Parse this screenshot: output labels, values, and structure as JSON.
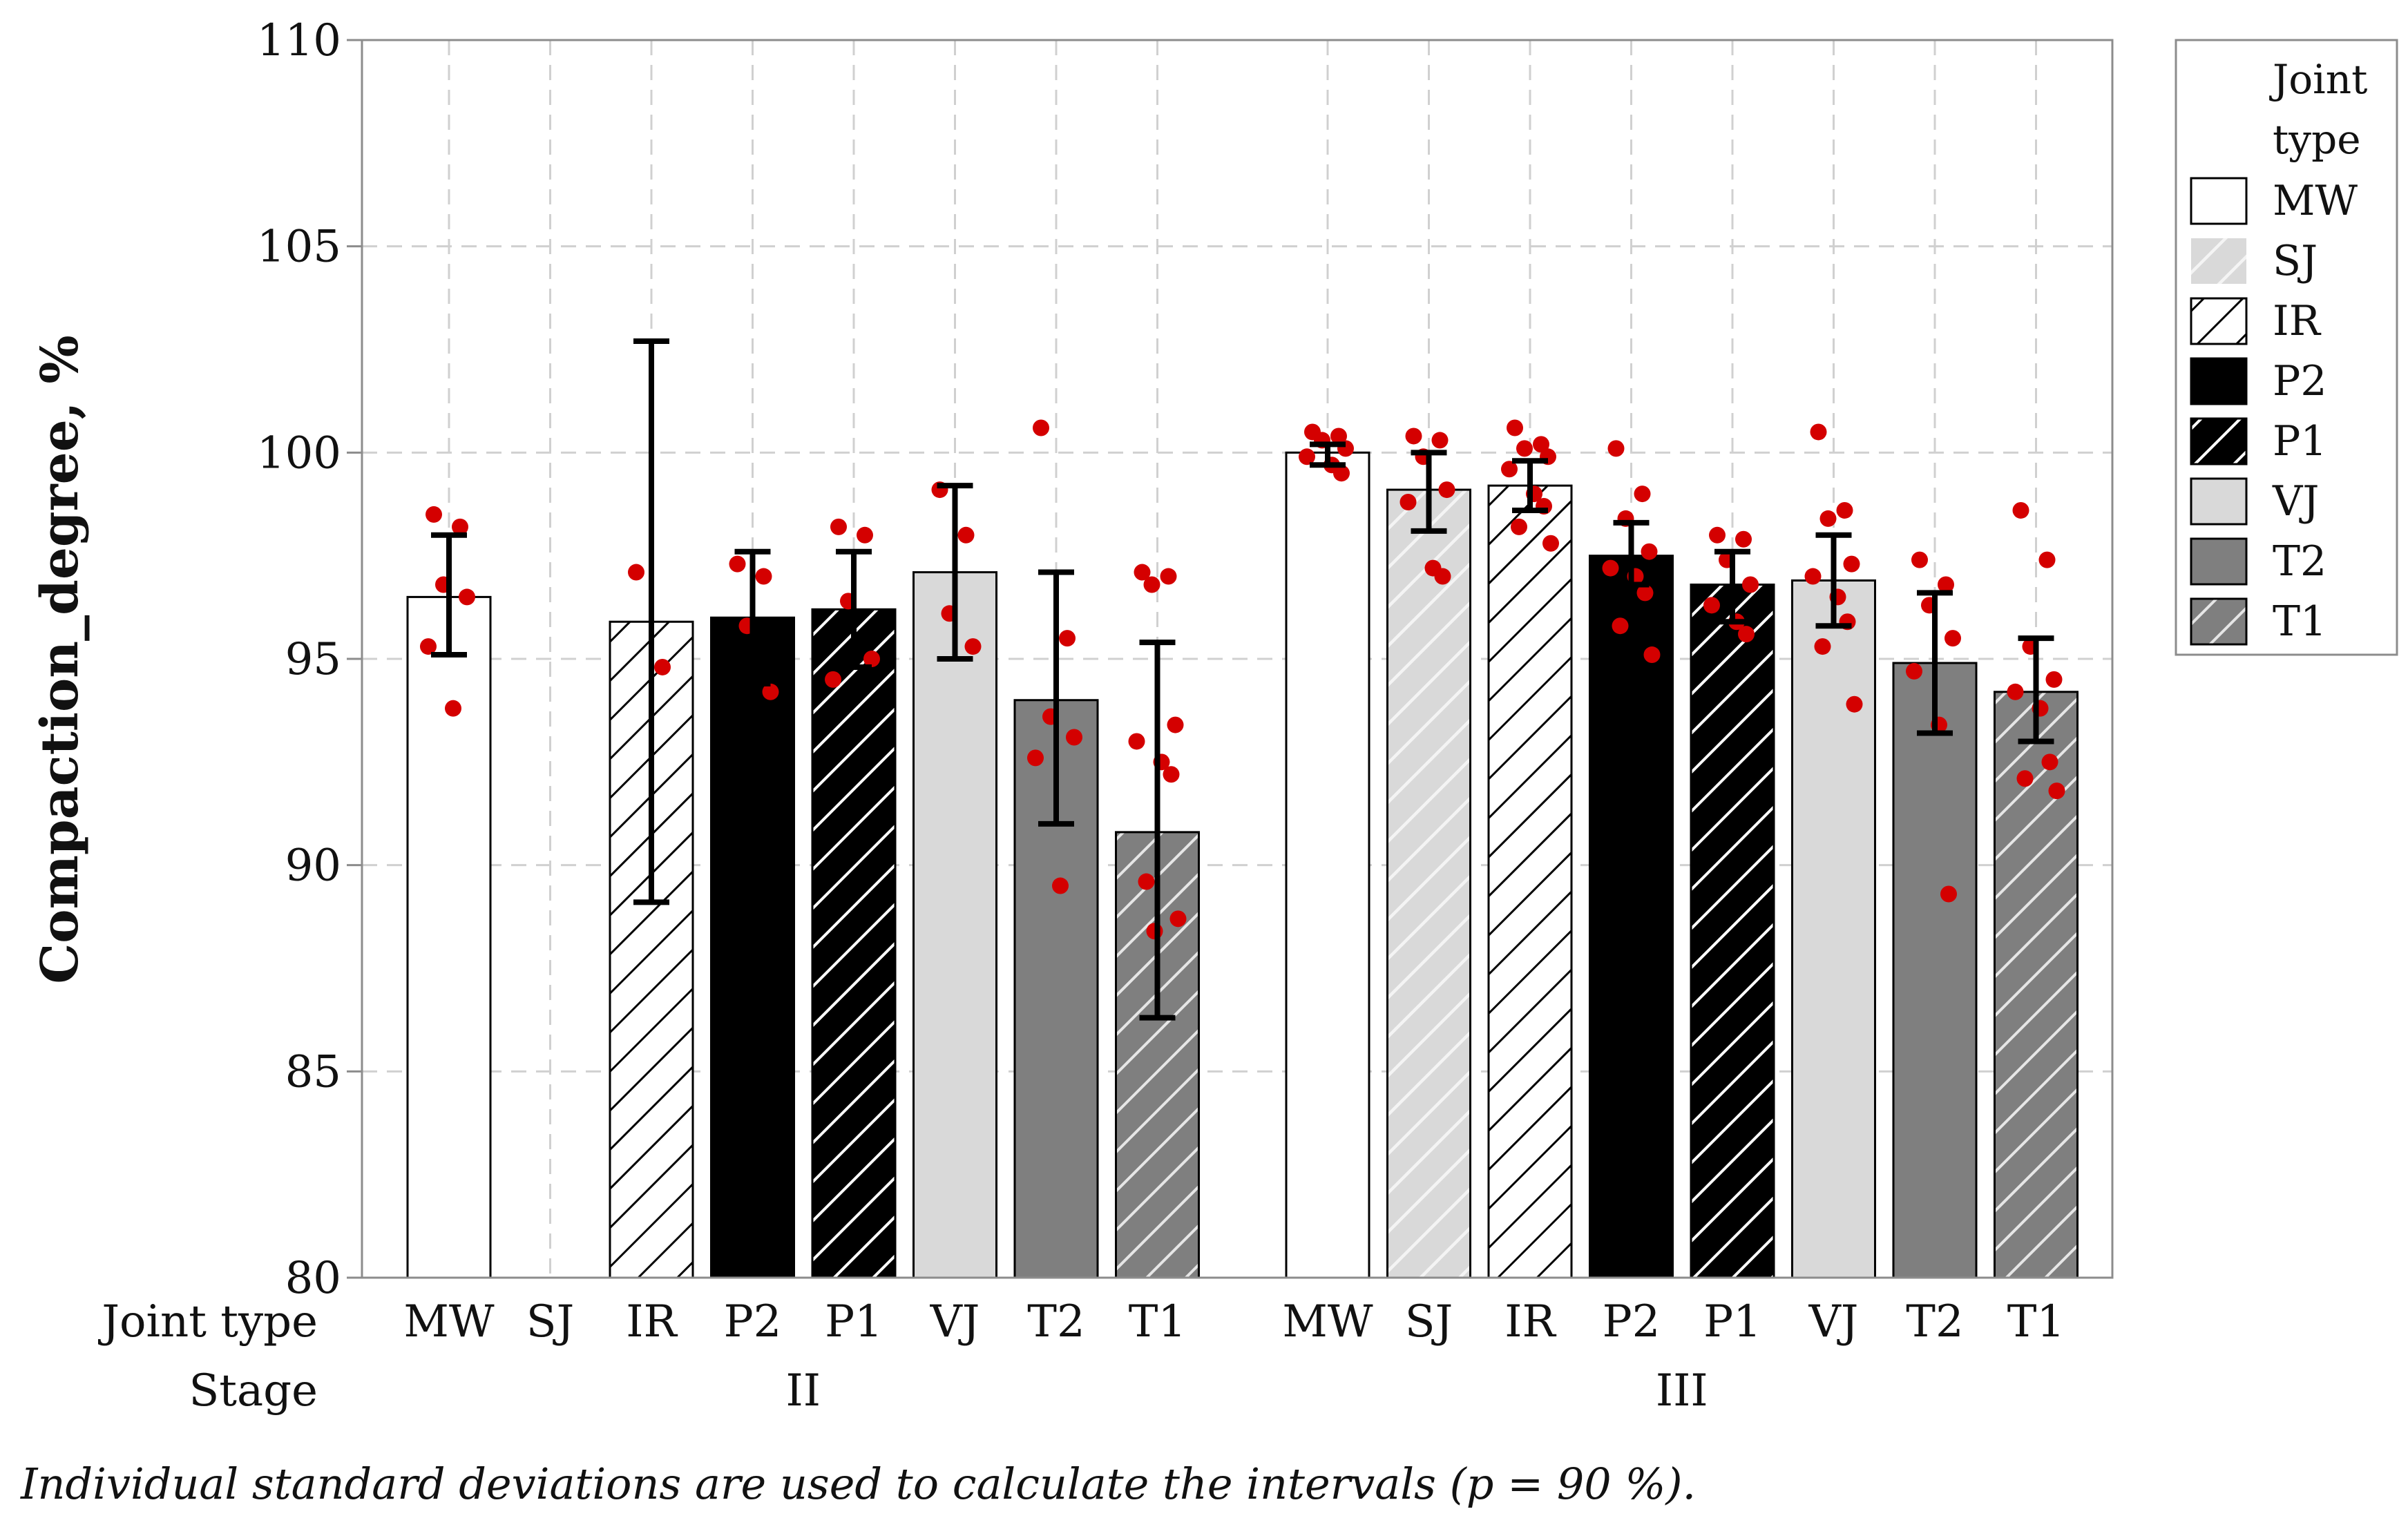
{
  "chart_data": {
    "type": "bar",
    "ylabel": "Compaction_degree, %",
    "ylim": [
      80,
      110
    ],
    "yticks": [
      80,
      85,
      90,
      95,
      100,
      105,
      110
    ],
    "grid": true,
    "x_row_labels": {
      "joint_type": "Joint type",
      "stage": "Stage"
    },
    "footnote": "Individual standard deviations are used to calculate the intervals (p = 90 %).",
    "legend": {
      "title_line1": "Joint",
      "title_line2": "type",
      "position": "right",
      "items": [
        {
          "label": "MW",
          "fill": "white"
        },
        {
          "label": "SJ",
          "fill": "lightgray-hatch"
        },
        {
          "label": "IR",
          "fill": "white-hatch"
        },
        {
          "label": "P2",
          "fill": "black"
        },
        {
          "label": "P1",
          "fill": "black-hatch"
        },
        {
          "label": "VJ",
          "fill": "lightgray"
        },
        {
          "label": "T2",
          "fill": "gray"
        },
        {
          "label": "T1",
          "fill": "gray-hatch"
        }
      ]
    },
    "colors": {
      "white": "#ffffff",
      "lightgray": "#d9d9d9",
      "gray": "#7f7f7f",
      "black": "#000000",
      "point": "#d40000",
      "grid": "#d0d0d0",
      "axis": "#8c8c8c"
    },
    "stages": [
      {
        "label": "II",
        "bars": [
          {
            "joint": "MW",
            "mean": 96.5,
            "ci": [
              95.1,
              98.0
            ],
            "points": [
              98.5,
              98.2,
              96.8,
              96.5,
              95.3,
              93.8
            ]
          },
          {
            "joint": "SJ",
            "mean": null,
            "ci": null,
            "points": []
          },
          {
            "joint": "IR",
            "mean": 95.9,
            "ci": [
              89.1,
              102.7
            ],
            "points": [
              97.1,
              94.8
            ]
          },
          {
            "joint": "P2",
            "mean": 96.0,
            "ci": [
              94.4,
              97.6
            ],
            "points": [
              97.3,
              97.0,
              95.8,
              94.2
            ]
          },
          {
            "joint": "P1",
            "mean": 96.2,
            "ci": [
              94.8,
              97.6
            ],
            "points": [
              98.2,
              98.0,
              96.4,
              95.0,
              94.5
            ]
          },
          {
            "joint": "VJ",
            "mean": 97.1,
            "ci": [
              95.0,
              99.2
            ],
            "points": [
              99.1,
              98.0,
              96.1,
              95.3
            ]
          },
          {
            "joint": "T2",
            "mean": 94.0,
            "ci": [
              91.0,
              97.1
            ],
            "points": [
              100.6,
              95.5,
              93.6,
              93.1,
              92.6,
              89.5
            ]
          },
          {
            "joint": "T1",
            "mean": 90.8,
            "ci": [
              86.3,
              95.4
            ],
            "points": [
              97.1,
              97.0,
              96.8,
              93.4,
              93.0,
              92.5,
              92.2,
              89.6,
              88.7,
              88.4
            ]
          }
        ]
      },
      {
        "label": "III",
        "bars": [
          {
            "joint": "MW",
            "mean": 100.0,
            "ci": [
              99.7,
              100.2
            ],
            "points": [
              100.5,
              100.4,
              100.3,
              100.1,
              99.9,
              99.7,
              99.5
            ]
          },
          {
            "joint": "SJ",
            "mean": 99.1,
            "ci": [
              98.1,
              100.0
            ],
            "points": [
              100.4,
              100.3,
              99.9,
              99.1,
              98.8,
              97.2,
              97.0
            ]
          },
          {
            "joint": "IR",
            "mean": 99.2,
            "ci": [
              98.6,
              99.8
            ],
            "points": [
              100.6,
              100.2,
              100.1,
              99.9,
              99.6,
              99.0,
              98.7,
              98.2,
              97.8
            ]
          },
          {
            "joint": "P2",
            "mean": 97.5,
            "ci": [
              96.8,
              98.3
            ],
            "points": [
              100.1,
              99.0,
              98.4,
              97.6,
              97.2,
              97.0,
              96.6,
              95.8,
              95.1
            ]
          },
          {
            "joint": "P1",
            "mean": 96.8,
            "ci": [
              95.9,
              97.6
            ],
            "points": [
              98.0,
              97.9,
              97.4,
              96.8,
              96.3,
              95.9,
              95.6
            ]
          },
          {
            "joint": "VJ",
            "mean": 96.9,
            "ci": [
              95.8,
              98.0
            ],
            "points": [
              100.5,
              98.6,
              98.4,
              97.3,
              97.0,
              96.5,
              95.9,
              95.3,
              93.9
            ]
          },
          {
            "joint": "T2",
            "mean": 94.9,
            "ci": [
              93.2,
              96.6
            ],
            "points": [
              97.4,
              96.8,
              96.3,
              95.5,
              94.7,
              93.4,
              89.3
            ]
          },
          {
            "joint": "T1",
            "mean": 94.2,
            "ci": [
              93.0,
              95.5
            ],
            "points": [
              98.6,
              97.4,
              95.3,
              94.5,
              94.2,
              93.8,
              92.5,
              92.1,
              91.8
            ]
          }
        ]
      }
    ]
  }
}
